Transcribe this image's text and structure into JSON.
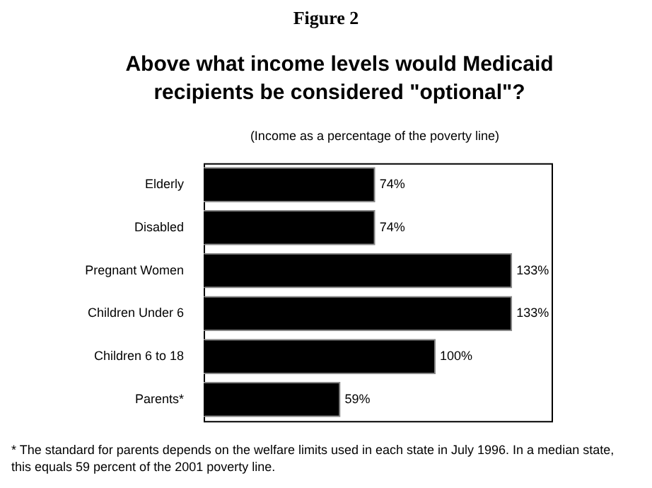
{
  "chart_data": {
    "type": "bar",
    "orientation": "horizontal",
    "title": "Figure 2",
    "subtitle": "Above what income levels would Medicaid recipients be considered \"optional\"?",
    "categories": [
      "Elderly",
      "Disabled",
      "Pregnant Women",
      "Children Under 6",
      "Children 6 to 18",
      "Parents*"
    ],
    "values": [
      74,
      74,
      133,
      133,
      100,
      59
    ],
    "value_labels": [
      "74%",
      "74%",
      "133%",
      "133%",
      "100%",
      "59%"
    ],
    "color": "#000000",
    "grid": false,
    "legend": false,
    "tick_labels": "y",
    "annotations": [
      "(Income as a percentage of the poverty line)",
      "* The standard for parents depends on the welfare limits used in each state in July 1996.  In a median state, this equals 59 percent of the 2001 poverty line."
    ]
  }
}
